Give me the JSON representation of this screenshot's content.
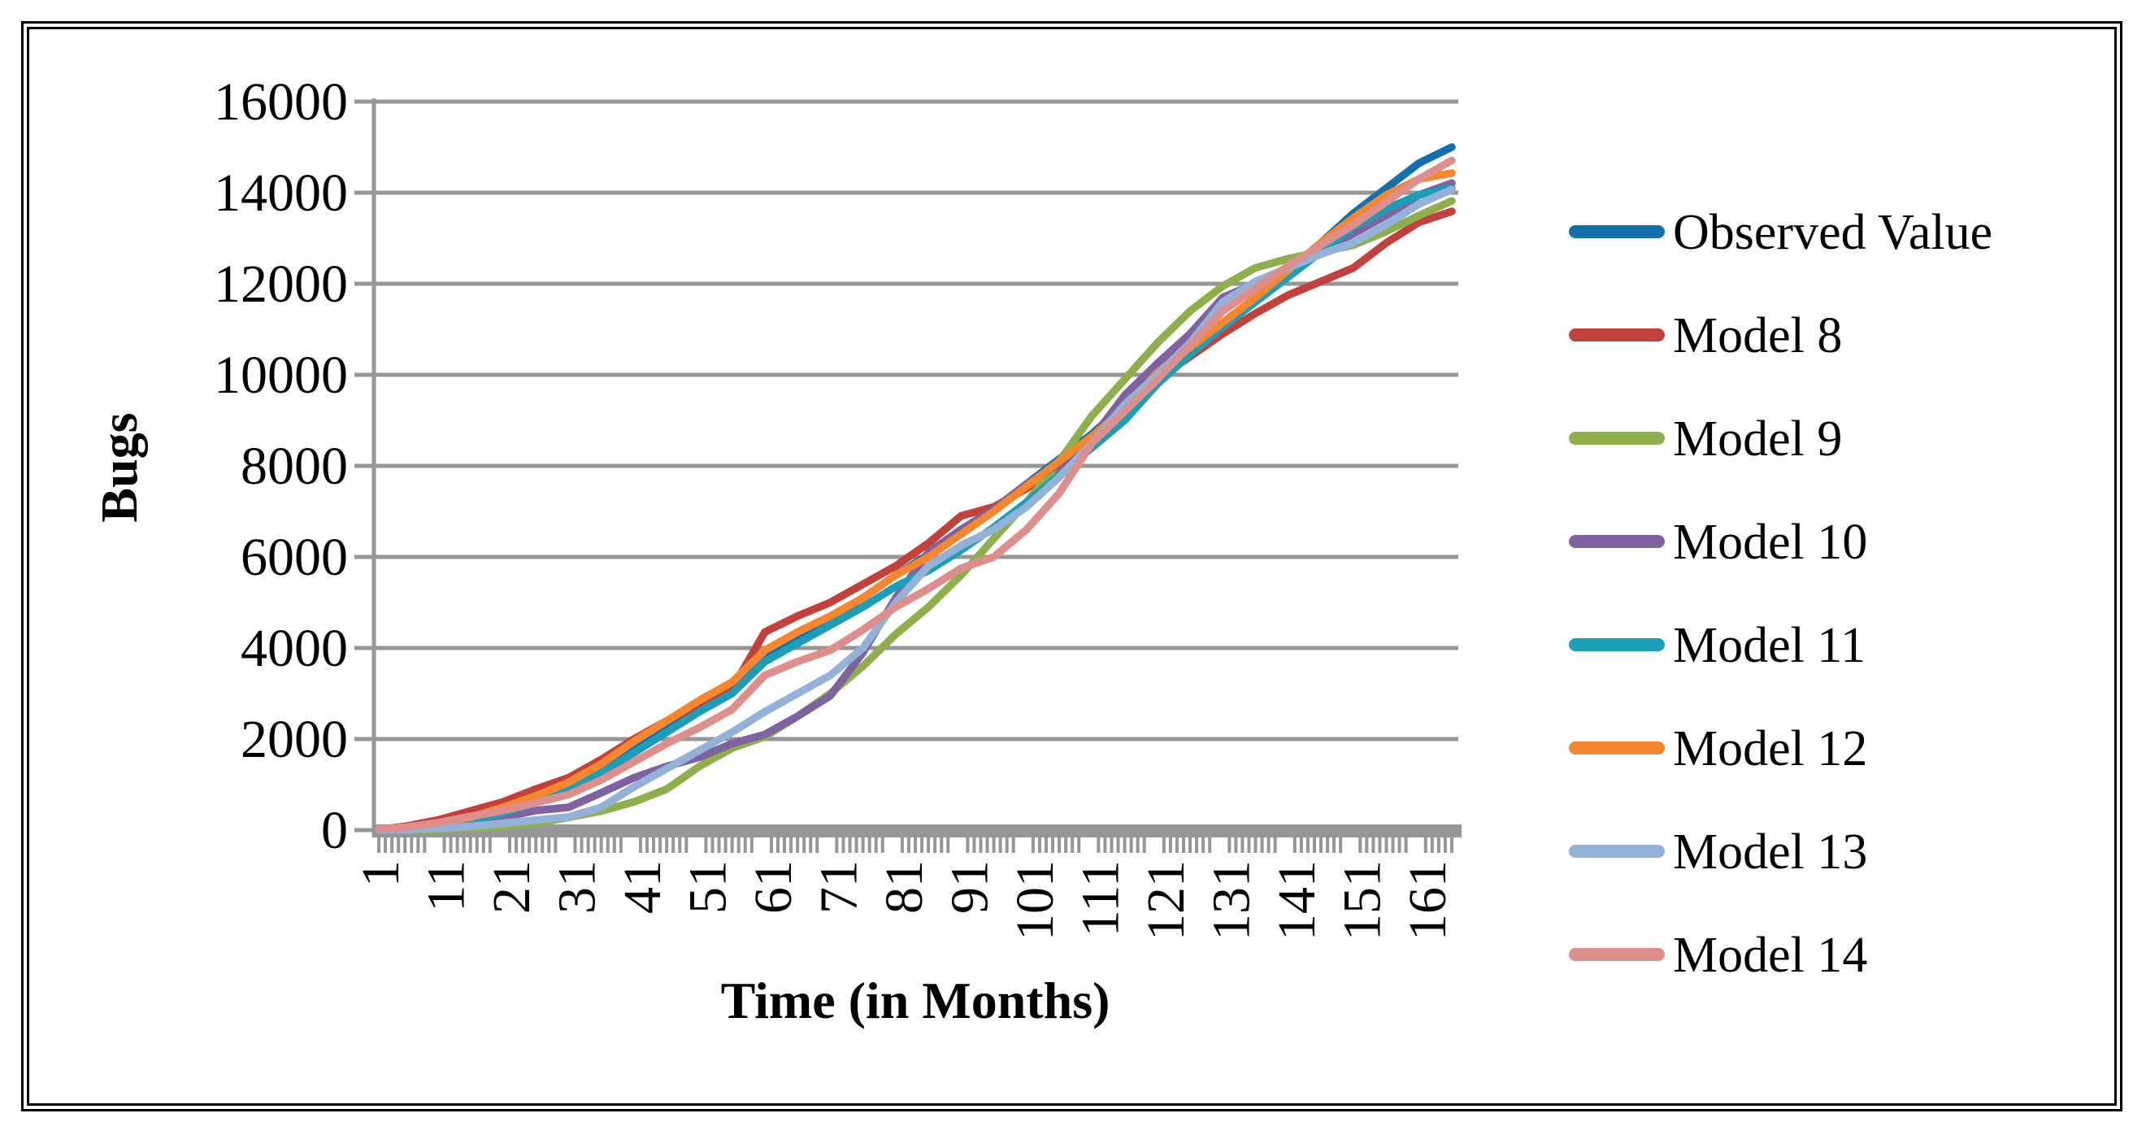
{
  "chart_data": {
    "type": "line",
    "title": "",
    "xlabel": "Time (in Months)",
    "ylabel": "Bugs",
    "ylim": [
      0,
      16000
    ],
    "ytick_step": 2000,
    "yticks": [
      0,
      2000,
      4000,
      6000,
      8000,
      10000,
      12000,
      14000,
      16000
    ],
    "xticks": [
      1,
      11,
      21,
      31,
      41,
      51,
      61,
      71,
      81,
      91,
      101,
      111,
      121,
      131,
      141,
      151,
      161
    ],
    "x_range_months": [
      1,
      165
    ],
    "grid": true,
    "legend_position": "right",
    "gridline_color": "#969696",
    "axis_color": "#969696",
    "x_sample_months": [
      1,
      5,
      10,
      15,
      20,
      25,
      30,
      35,
      40,
      45,
      50,
      55,
      60,
      65,
      70,
      75,
      80,
      85,
      90,
      95,
      100,
      105,
      110,
      115,
      120,
      125,
      130,
      135,
      140,
      145,
      150,
      155,
      160,
      165
    ],
    "series": [
      {
        "name": "Observed Value",
        "color": "#1271AD",
        "values": [
          10,
          40,
          110,
          230,
          420,
          650,
          950,
          1350,
          1850,
          2300,
          2750,
          3150,
          3850,
          4250,
          4650,
          5100,
          5600,
          6050,
          6550,
          7050,
          7600,
          8150,
          8700,
          9350,
          10100,
          10600,
          11100,
          11600,
          12250,
          12900,
          13550,
          14100,
          14650,
          15000
        ]
      },
      {
        "name": "Model 8",
        "color": "#C2413B",
        "values": [
          15,
          80,
          220,
          420,
          620,
          900,
          1150,
          1550,
          2000,
          2400,
          2750,
          3100,
          4350,
          4700,
          5000,
          5400,
          5800,
          6300,
          6900,
          7100,
          7500,
          8000,
          8500,
          9100,
          9900,
          10400,
          10900,
          11350,
          11750,
          12050,
          12350,
          12900,
          13350,
          13590
        ]
      },
      {
        "name": "Model 9",
        "color": "#8DB04A",
        "values": [
          0,
          5,
          15,
          35,
          80,
          150,
          280,
          420,
          620,
          900,
          1400,
          1800,
          2050,
          2500,
          3000,
          3600,
          4300,
          4900,
          5600,
          6400,
          7200,
          8100,
          9100,
          9900,
          10700,
          11400,
          11950,
          12350,
          12550,
          12700,
          12850,
          13150,
          13500,
          13820
        ]
      },
      {
        "name": "Model 10",
        "color": "#7E62A1",
        "values": [
          5,
          20,
          60,
          140,
          280,
          430,
          500,
          820,
          1150,
          1400,
          1600,
          1900,
          2100,
          2500,
          2950,
          3900,
          5100,
          6100,
          6600,
          7050,
          7600,
          8050,
          8600,
          9550,
          10250,
          10900,
          11700,
          12000,
          12300,
          12700,
          13100,
          13500,
          13950,
          14210
        ]
      },
      {
        "name": "Model 11",
        "color": "#1B9FB8",
        "values": [
          5,
          30,
          90,
          200,
          380,
          600,
          880,
          1250,
          1700,
          2150,
          2600,
          3000,
          3700,
          4100,
          4500,
          4900,
          5350,
          5700,
          6150,
          6650,
          7200,
          7800,
          8400,
          9000,
          9800,
          10450,
          11050,
          11600,
          12150,
          12700,
          13250,
          13650,
          13950,
          14100
        ]
      },
      {
        "name": "Model 12",
        "color": "#F6872E",
        "values": [
          10,
          50,
          140,
          280,
          500,
          750,
          1050,
          1450,
          1950,
          2400,
          2850,
          3250,
          3950,
          4350,
          4700,
          5100,
          5600,
          6000,
          6500,
          7000,
          7550,
          8100,
          8650,
          9250,
          10050,
          10600,
          11150,
          11700,
          12300,
          12900,
          13450,
          13950,
          14300,
          14430
        ]
      },
      {
        "name": "Model 13",
        "color": "#94B2D7",
        "values": [
          5,
          15,
          40,
          80,
          150,
          220,
          290,
          500,
          950,
          1350,
          1750,
          2150,
          2600,
          3000,
          3400,
          4000,
          5000,
          5800,
          6250,
          6600,
          7100,
          7750,
          8500,
          9350,
          10000,
          10700,
          11600,
          12050,
          12350,
          12650,
          12900,
          13300,
          13750,
          14070
        ]
      },
      {
        "name": "Model 14",
        "color": "#DE8E8B",
        "values": [
          20,
          60,
          160,
          300,
          430,
          600,
          780,
          1100,
          1500,
          1900,
          2250,
          2650,
          3400,
          3700,
          3950,
          4400,
          4900,
          5300,
          5750,
          6000,
          6600,
          7400,
          8500,
          9200,
          9900,
          10650,
          11400,
          11900,
          12400,
          12850,
          13300,
          13800,
          14300,
          14710
        ]
      }
    ]
  }
}
